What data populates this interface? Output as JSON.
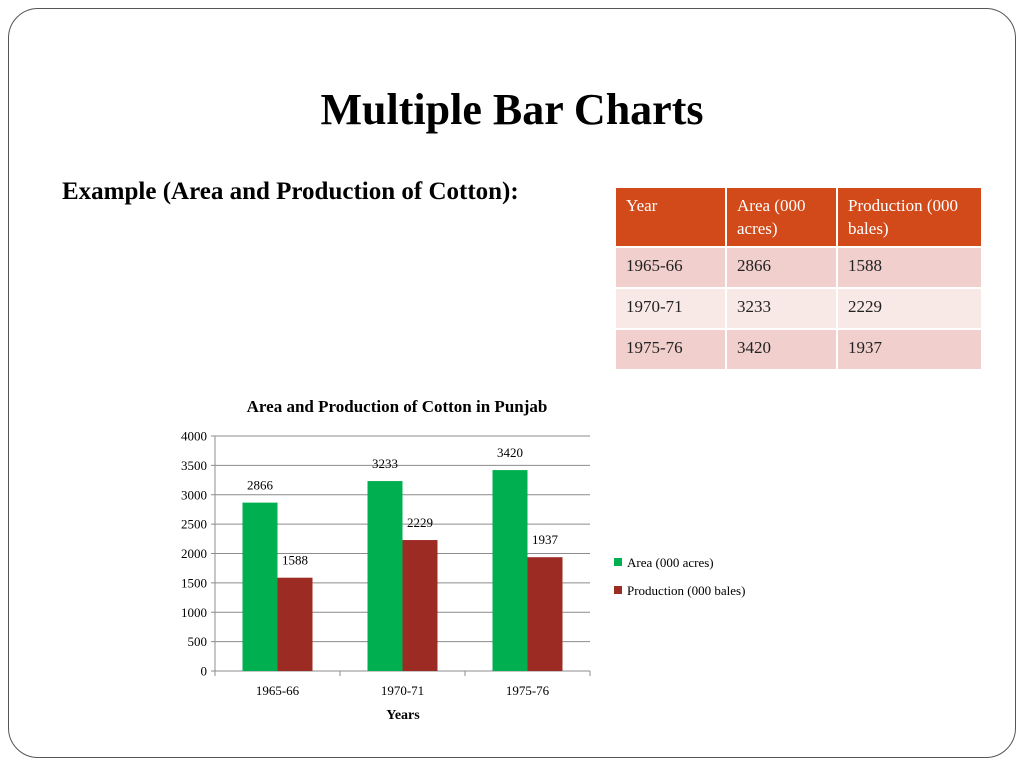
{
  "slide": {
    "title": "Multiple Bar Charts",
    "example_label": "Example (Area and Production of Cotton):"
  },
  "table": {
    "headers": [
      "Year",
      "Area (000 acres)",
      "Production (000 bales)"
    ],
    "rows": [
      [
        "1965-66",
        "2866",
        "1588"
      ],
      [
        "1970-71",
        "3233",
        "2229"
      ],
      [
        "1975-76",
        "3420",
        "1937"
      ]
    ],
    "header_color": "#d24a1a"
  },
  "chart_data": {
    "type": "bar",
    "title": "Area and Production of Cotton in Punjab",
    "xlabel": "Years",
    "ylabel": "",
    "categories": [
      "1965-66",
      "1970-71",
      "1975-76"
    ],
    "series": [
      {
        "name": "Area (000 acres)",
        "values": [
          2866,
          3233,
          3420
        ],
        "color": "#00b050"
      },
      {
        "name": "Production (000 bales)",
        "values": [
          1588,
          2229,
          1937
        ],
        "color": "#9c2b23"
      }
    ],
    "ylim": [
      0,
      4000
    ],
    "yticks": [
      0,
      500,
      1000,
      1500,
      2000,
      2500,
      3000,
      3500,
      4000
    ],
    "grid": true,
    "legend": "right",
    "data_labels": true
  }
}
